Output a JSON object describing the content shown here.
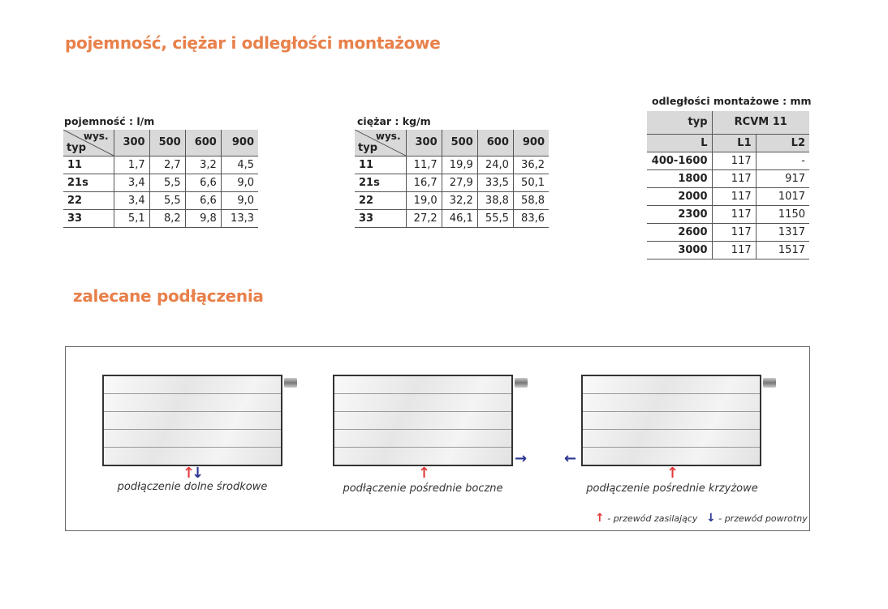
{
  "title1": "pojemność, ciężar i odległości montażowe",
  "title2": "zalecane podłączenia",
  "capacity": {
    "label": "pojemność : l/m",
    "corner_top": "wys.",
    "corner_bottom": "typ",
    "heights": [
      "300",
      "500",
      "600",
      "900"
    ],
    "rows": [
      [
        "11",
        "1,7",
        "2,7",
        "3,2",
        "4,5"
      ],
      [
        "21s",
        "3,4",
        "5,5",
        "6,6",
        "9,0"
      ],
      [
        "22",
        "3,4",
        "5,5",
        "6,6",
        "9,0"
      ],
      [
        "33",
        "5,1",
        "8,2",
        "9,8",
        "13,3"
      ]
    ]
  },
  "weight": {
    "label": "ciężar : kg/m",
    "corner_top": "wys.",
    "corner_bottom": "typ",
    "heights": [
      "300",
      "500",
      "600",
      "900"
    ],
    "rows": [
      [
        "11",
        "11,7",
        "19,9",
        "24,0",
        "36,2"
      ],
      [
        "21s",
        "16,7",
        "27,9",
        "33,5",
        "50,1"
      ],
      [
        "22",
        "19,0",
        "32,2",
        "38,8",
        "58,8"
      ],
      [
        "33",
        "27,2",
        "46,1",
        "55,5",
        "83,6"
      ]
    ]
  },
  "mounting": {
    "label": "odległości montażowe : mm",
    "typ": "typ",
    "model": "RCVM 11",
    "cols": [
      "L",
      "L1",
      "L2"
    ],
    "rows": [
      [
        "400-1600",
        "117",
        "-"
      ],
      [
        "1800",
        "117",
        "917"
      ],
      [
        "2000",
        "117",
        "1017"
      ],
      [
        "2300",
        "117",
        "1150"
      ],
      [
        "2600",
        "117",
        "1317"
      ],
      [
        "3000",
        "117",
        "1517"
      ]
    ]
  },
  "connections": [
    {
      "caption": "podłączenie dolne środkowe"
    },
    {
      "caption": "podłączenie pośrednie boczne"
    },
    {
      "caption": "podłączenie pośrednie krzyżowe"
    }
  ],
  "legend": {
    "supply": "- przewód zasilający",
    "return": "- przewód powrotny"
  },
  "colors": {
    "accent": "#e8804a",
    "supply": "#e23b3b",
    "return": "#2a3590"
  }
}
